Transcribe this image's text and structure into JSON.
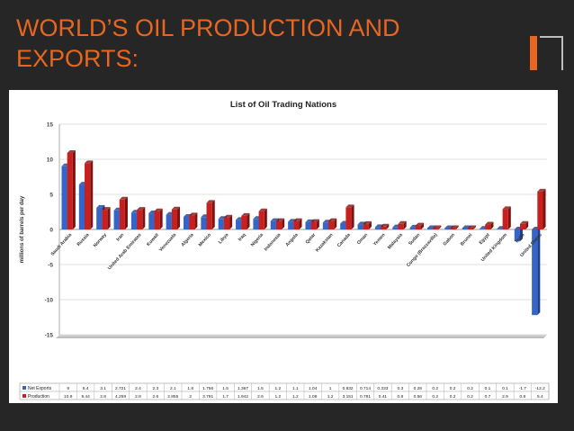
{
  "slide": {
    "title_line1": "WORLD’S OIL PRODUCTION AND",
    "title_line2": "EXPORTS:",
    "accent_color": "#e8661f",
    "background_color": "#262626"
  },
  "chart_data": {
    "type": "bar",
    "title": "List of Oil Trading Nations",
    "ylabel": "millions of barrels per day",
    "ylim": [
      -15,
      15
    ],
    "yticks": [
      15,
      10,
      5,
      0,
      -5,
      -10,
      -15
    ],
    "grid": true,
    "categories": [
      "Saudi Arabia",
      "Russia",
      "Norway",
      "Iran",
      "United Arab Emirates",
      "Kuwait",
      "Venezuela",
      "Algeria",
      "Mexico",
      "Libya",
      "Iraq",
      "Nigeria",
      "Indonesia",
      "Angola",
      "Qatar",
      "Kazakstan",
      "Canada",
      "Oman",
      "Yemen",
      "Malaysia",
      "Sudan",
      "Congo (Brazzaville)",
      "Gabon",
      "Brunei",
      "Egypt",
      "United Kingdom",
      "India",
      "United States"
    ],
    "series": [
      {
        "name": "Net Exports",
        "color": "#3565c9",
        "values": [
          9,
          6.4,
          3.1,
          2.721,
          2.4,
          2.3,
          2.1,
          1.8,
          1.756,
          1.5,
          1.367,
          1.5,
          1.2,
          1.1,
          1.04,
          1,
          0.832,
          0.714,
          0.333,
          0.3,
          0.28,
          0.2,
          0.2,
          0.2,
          0.1,
          0.1,
          -1.7,
          -12.2
        ]
      },
      {
        "name": "Production",
        "color": "#c8201e",
        "values": [
          10.9,
          9.44,
          2.8,
          4.259,
          2.8,
          2.6,
          2.855,
          2,
          3.791,
          1.7,
          1.942,
          2.6,
          1.2,
          1.2,
          1.08,
          1.2,
          3.151,
          0.781,
          0.41,
          0.8,
          0.56,
          0.2,
          0.2,
          0.2,
          0.7,
          2.9,
          0.8,
          5.4
        ]
      }
    ],
    "table": {
      "rows": [
        {
          "label": "Net Exports",
          "cells": [
            "9",
            "6.4",
            "3.1",
            "2.721",
            "2.4",
            "2.3",
            "2.1",
            "1.8",
            "1.756",
            "1.5",
            "1.367",
            "1.5",
            "1.2",
            "1.1",
            "1.04",
            "1",
            "0.832",
            "0.714",
            "0.333",
            "0.3",
            "0.28",
            "0.2",
            "0.2",
            "0.2",
            "0.1",
            "0.1",
            "-1.7",
            "-12.2"
          ]
        },
        {
          "label": "Production",
          "cells": [
            "10.9",
            "9.44",
            "2.8",
            "4.259",
            "2.8",
            "2.6",
            "2.855",
            "2",
            "3.791",
            "1.7",
            "1.942",
            "2.6",
            "1.2",
            "1.2",
            "1.08",
            "1.2",
            "3.151",
            "0.781",
            "0.41",
            "0.8",
            "0.56",
            "0.2",
            "0.2",
            "0.2",
            "0.7",
            "2.9",
            "0.8",
            "5.4"
          ]
        }
      ]
    }
  }
}
